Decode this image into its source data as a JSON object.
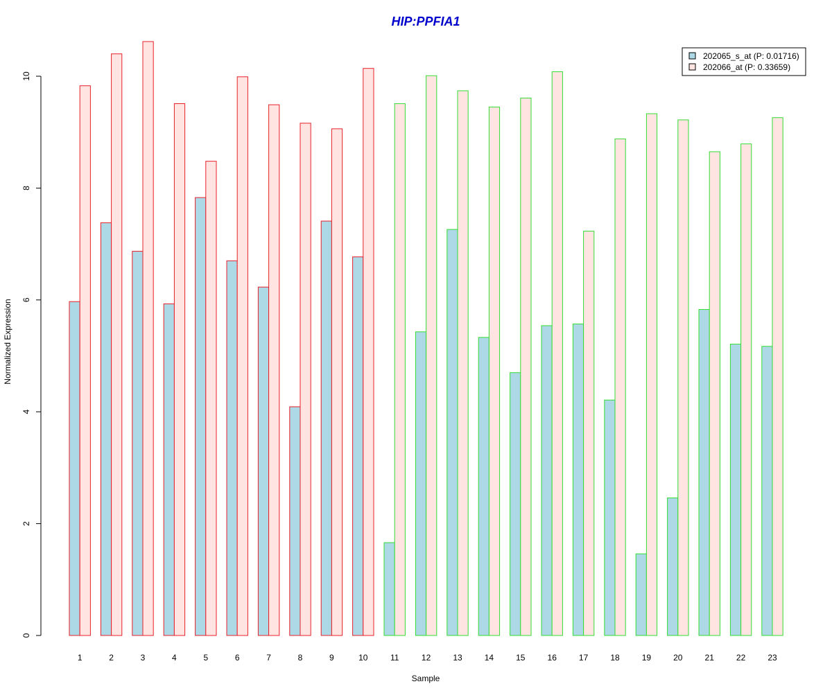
{
  "chart_data": {
    "type": "bar",
    "title": "HIP:PPFIA1",
    "xlabel": "Sample",
    "ylabel": "Normalized Expression",
    "ylim": [
      0,
      10.6
    ],
    "yticks": [
      0,
      2,
      4,
      6,
      8,
      10
    ],
    "categories": [
      "1",
      "2",
      "3",
      "4",
      "5",
      "6",
      "7",
      "8",
      "9",
      "10",
      "11",
      "12",
      "13",
      "14",
      "15",
      "16",
      "17",
      "18",
      "19",
      "20",
      "21",
      "22",
      "23"
    ],
    "groups": [
      "red",
      "red",
      "red",
      "red",
      "red",
      "red",
      "red",
      "red",
      "red",
      "red",
      "green",
      "green",
      "green",
      "green",
      "green",
      "green",
      "green",
      "green",
      "green",
      "green",
      "green",
      "green",
      "green"
    ],
    "group_colors": {
      "red": "#e8202a",
      "green": "#33dd33"
    },
    "series": [
      {
        "name": "202065_s_at (P: 0.01716)",
        "fill": "#add8e6",
        "values": [
          5.97,
          7.38,
          6.87,
          5.93,
          7.83,
          6.7,
          6.23,
          4.09,
          7.41,
          6.77,
          1.66,
          5.43,
          7.26,
          5.33,
          4.7,
          5.54,
          5.57,
          4.21,
          1.46,
          2.46,
          5.83,
          5.21,
          5.17
        ]
      },
      {
        "name": "202066_at (P: 0.33659)",
        "fill": "#ffe4e1",
        "values": [
          9.83,
          10.4,
          10.62,
          9.51,
          8.48,
          9.99,
          9.49,
          9.16,
          9.06,
          10.14,
          9.51,
          10.01,
          9.74,
          9.45,
          9.61,
          10.08,
          7.23,
          8.88,
          9.33,
          9.22,
          8.65,
          8.79,
          9.26
        ]
      }
    ],
    "title_color": "#0000cc",
    "legend_position": "top-right",
    "grid": false
  }
}
